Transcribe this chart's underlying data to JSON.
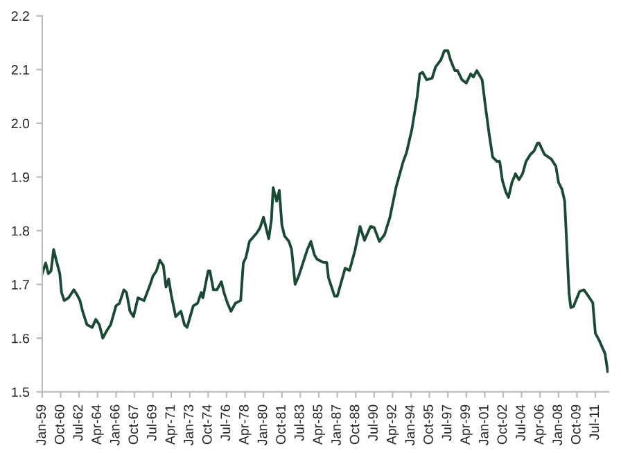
{
  "chart_data": {
    "type": "line",
    "line_style": "solid",
    "marker": "none",
    "grid": false,
    "legend": false,
    "ylim": [
      1.5,
      2.2
    ],
    "yticks": [
      1.5,
      1.6,
      1.7,
      1.8,
      1.9,
      {
        "value": 2.0,
        "label": "2.0"
      },
      2.1,
      2.2
    ],
    "xlim": [
      "1959-01",
      "2012-10"
    ],
    "xticks": [
      {
        "value": "1959-01",
        "label": "Jan-59"
      },
      {
        "value": "1960-10",
        "label": "Oct-60"
      },
      {
        "value": "1962-07",
        "label": "Jul-62"
      },
      {
        "value": "1964-04",
        "label": "Apr-64"
      },
      {
        "value": "1966-01",
        "label": "Jan-66"
      },
      {
        "value": "1967-10",
        "label": "Oct-67"
      },
      {
        "value": "1969-07",
        "label": "Jul-69"
      },
      {
        "value": "1971-04",
        "label": "Apr-71"
      },
      {
        "value": "1973-01",
        "label": "Jan-73"
      },
      {
        "value": "1974-10",
        "label": "Oct-74"
      },
      {
        "value": "1976-07",
        "label": "Jul-76"
      },
      {
        "value": "1978-04",
        "label": "Apr-78"
      },
      {
        "value": "1980-01",
        "label": "Jan-80"
      },
      {
        "value": "1981-10",
        "label": "Oct-81"
      },
      {
        "value": "1983-07",
        "label": "Jul-83"
      },
      {
        "value": "1985-04",
        "label": "Apr-85"
      },
      {
        "value": "1987-01",
        "label": "Jan-87"
      },
      {
        "value": "1988-10",
        "label": "Oct-88"
      },
      {
        "value": "1990-07",
        "label": "Jul-90"
      },
      {
        "value": "1992-04",
        "label": "Apr-92"
      },
      {
        "value": "1994-01",
        "label": "Jan-94"
      },
      {
        "value": "1995-10",
        "label": "Oct-95"
      },
      {
        "value": "1997-07",
        "label": "Jul-97"
      },
      {
        "value": "1999-04",
        "label": "Apr-99"
      },
      {
        "value": "2001-01",
        "label": "Jan-01"
      },
      {
        "value": "2002-10",
        "label": "Oct-02"
      },
      {
        "value": "2004-07",
        "label": "Jul-04"
      },
      {
        "value": "2006-04",
        "label": "Apr-06"
      },
      {
        "value": "2008-01",
        "label": "Jan-08"
      },
      {
        "value": "2009-10",
        "label": "Oct-09"
      },
      {
        "value": "2011-07",
        "label": "Jul-11"
      }
    ],
    "series": [
      {
        "color": "#1b4a34",
        "x": [
          "1959-01",
          "1959-05",
          "1959-08",
          "1959-11",
          "1960-02",
          "1960-05",
          "1960-09",
          "1960-11",
          "1961-02",
          "1961-07",
          "1962-01",
          "1962-05",
          "1962-08",
          "1962-11",
          "1963-04",
          "1963-10",
          "1964-02",
          "1964-06",
          "1964-10",
          "1965-03",
          "1965-07",
          "1966-01",
          "1966-05",
          "1966-10",
          "1967-01",
          "1967-05",
          "1967-09",
          "1968-02",
          "1968-09",
          "1969-04",
          "1969-07",
          "1969-11",
          "1970-03",
          "1970-07",
          "1970-10",
          "1971-01",
          "1971-04",
          "1971-09",
          "1972-03",
          "1972-07",
          "1972-10",
          "1973-05",
          "1973-10",
          "1974-02",
          "1974-04",
          "1974-10",
          "1974-12",
          "1975-04",
          "1975-08",
          "1976-01",
          "1976-04",
          "1976-08",
          "1976-12",
          "1977-05",
          "1977-11",
          "1978-02",
          "1978-05",
          "1978-09",
          "1979-05",
          "1979-09",
          "1980-01",
          "1980-04",
          "1980-07",
          "1980-10",
          "1980-12",
          "1981-04",
          "1981-07",
          "1981-10",
          "1982-01",
          "1982-06",
          "1982-09",
          "1983-01",
          "1983-05",
          "1983-10",
          "1984-03",
          "1984-07",
          "1984-11",
          "1985-02",
          "1985-09",
          "1986-01",
          "1986-03",
          "1986-10",
          "1987-01",
          "1987-10",
          "1988-03",
          "1988-09",
          "1989-03",
          "1989-08",
          "1990-03",
          "1990-07",
          "1991-01",
          "1991-07",
          "1992-01",
          "1992-08",
          "1993-04",
          "1993-08",
          "1994-02",
          "1994-08",
          "1994-11",
          "1995-02",
          "1995-07",
          "1996-01",
          "1996-05",
          "1996-11",
          "1997-03",
          "1997-07",
          "1997-10",
          "1998-03",
          "1998-06",
          "1998-11",
          "1999-04",
          "1999-09",
          "1999-12",
          "2000-04",
          "2000-10",
          "2001-02",
          "2001-06",
          "2001-10",
          "2002-03",
          "2002-06",
          "2002-09",
          "2003-01",
          "2003-04",
          "2003-08",
          "2003-12",
          "2004-04",
          "2004-08",
          "2004-12",
          "2005-05",
          "2005-09",
          "2006-01",
          "2006-03",
          "2006-09",
          "2007-05",
          "2007-10",
          "2008-01",
          "2008-05",
          "2008-08",
          "2008-11",
          "2009-01",
          "2009-03",
          "2009-06",
          "2010-01",
          "2010-06",
          "2010-11",
          "2011-04",
          "2011-07",
          "2011-11",
          "2012-06",
          "2012-09"
        ],
        "values": [
          1.72,
          1.74,
          1.72,
          1.725,
          1.765,
          1.745,
          1.72,
          1.685,
          1.67,
          1.675,
          1.69,
          1.68,
          1.67,
          1.65,
          1.625,
          1.62,
          1.635,
          1.625,
          1.6,
          1.615,
          1.625,
          1.66,
          1.665,
          1.69,
          1.685,
          1.65,
          1.64,
          1.675,
          1.67,
          1.7,
          1.715,
          1.725,
          1.745,
          1.735,
          1.695,
          1.71,
          1.68,
          1.64,
          1.65,
          1.625,
          1.62,
          1.66,
          1.665,
          1.685,
          1.675,
          1.725,
          1.725,
          1.69,
          1.69,
          1.705,
          1.685,
          1.665,
          1.65,
          1.665,
          1.67,
          1.74,
          1.75,
          1.78,
          1.795,
          1.805,
          1.825,
          1.805,
          1.785,
          1.82,
          1.88,
          1.855,
          1.875,
          1.81,
          1.79,
          1.78,
          1.765,
          1.7,
          1.715,
          1.74,
          1.765,
          1.78,
          1.755,
          1.747,
          1.741,
          1.741,
          1.713,
          1.678,
          1.678,
          1.73,
          1.726,
          1.762,
          1.808,
          1.782,
          1.808,
          1.806,
          1.78,
          1.793,
          1.825,
          1.881,
          1.928,
          1.946,
          1.989,
          2.049,
          2.092,
          2.095,
          2.081,
          2.084,
          2.105,
          2.118,
          2.135,
          2.135,
          2.118,
          2.098,
          2.098,
          2.081,
          2.075,
          2.092,
          2.086,
          2.098,
          2.081,
          2.028,
          1.98,
          1.937,
          1.929,
          1.929,
          1.894,
          1.872,
          1.862,
          1.89,
          1.906,
          1.895,
          1.906,
          1.929,
          1.942,
          1.948,
          1.963,
          1.963,
          1.942,
          1.933,
          1.92,
          1.89,
          1.877,
          1.855,
          1.752,
          1.683,
          1.657,
          1.659,
          1.687,
          1.69,
          1.678,
          1.666,
          1.609,
          1.597,
          1.571,
          1.538
        ]
      }
    ]
  }
}
